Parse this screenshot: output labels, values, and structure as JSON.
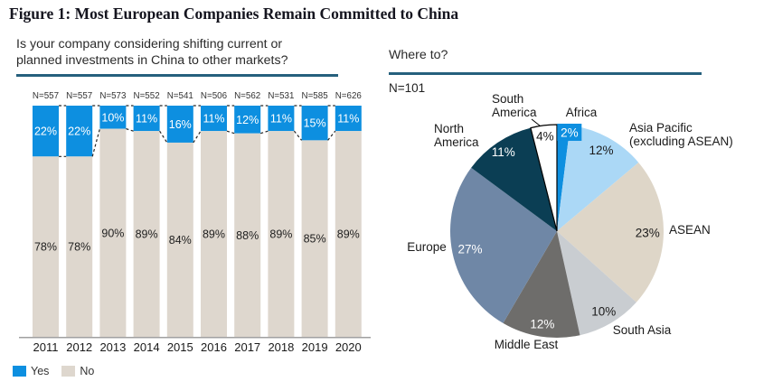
{
  "figure_title": "Figure 1: Most European Companies Remain Committed to China",
  "bar_panel": {
    "question": "Is your company considering shifting current or\nplanned investments in China to other markets?"
  },
  "pie_panel": {
    "title": "Where to?",
    "n": "N=101"
  },
  "colors": {
    "accent_underline": "#26607d",
    "axis": "#a0a0a0",
    "dash": "#262626",
    "yes_blue": "#0d8fe0",
    "no_beige": "#ded7ce"
  },
  "chart_data": [
    {
      "type": "bar",
      "stacked": true,
      "title": "Is your company considering shifting current or planned investments in China to other markets?",
      "categories": [
        "2011",
        "2012",
        "2013",
        "2014",
        "2015",
        "2016",
        "2017",
        "2018",
        "2019",
        "2020"
      ],
      "series": [
        {
          "name": "Yes",
          "color": "#0d8fe0",
          "values": [
            22,
            22,
            10,
            11,
            16,
            11,
            12,
            11,
            15,
            11
          ]
        },
        {
          "name": "No",
          "color": "#ded7ce",
          "values": [
            78,
            78,
            90,
            89,
            84,
            89,
            88,
            89,
            85,
            89
          ]
        }
      ],
      "sample_sizes": [
        "N=557",
        "N=557",
        "N=573",
        "N=552",
        "N=541",
        "N=506",
        "N=562",
        "N=531",
        "N=585",
        "N=626"
      ],
      "value_suffix": "%",
      "ylim": [
        0,
        100
      ],
      "legend_position": "bottom-left"
    },
    {
      "type": "pie",
      "title": "Where to?",
      "n": "N=101",
      "slices": [
        {
          "label": "Africa",
          "label_lines": [
            "Africa"
          ],
          "pct": 2,
          "color": "#0d8fe0",
          "pct_color": "#ffffff",
          "chip": true
        },
        {
          "label": "Asia Pacific (excluding ASEAN)",
          "label_lines": [
            "Asia Pacific",
            "(excluding ASEAN)"
          ],
          "pct": 12,
          "color": "#abd8f6",
          "pct_color": "#1a1a1a"
        },
        {
          "label": "ASEAN",
          "label_lines": [
            "ASEAN"
          ],
          "pct": 23,
          "color": "#ded6c8",
          "pct_color": "#1a1a1a"
        },
        {
          "label": "South Asia",
          "label_lines": [
            "South Asia"
          ],
          "pct": 10,
          "color": "#c9cdd1",
          "pct_color": "#1a1a1a"
        },
        {
          "label": "Middle East",
          "label_lines": [
            "Middle East"
          ],
          "pct": 12,
          "color": "#6e6d6b",
          "pct_color": "#ffffff"
        },
        {
          "label": "Europe",
          "label_lines": [
            "Europe"
          ],
          "pct": 27,
          "color": "#6f87a6",
          "pct_color": "#ffffff"
        },
        {
          "label": "North America",
          "label_lines": [
            "North",
            "America"
          ],
          "pct": 11,
          "color": "#0b3e54",
          "pct_color": "#ffffff"
        },
        {
          "label": "South America",
          "label_lines": [
            "South",
            "America"
          ],
          "pct": 4,
          "color": "#ffffff",
          "pct_color": "#1a1a1a",
          "stroke": "#000000"
        }
      ]
    }
  ]
}
